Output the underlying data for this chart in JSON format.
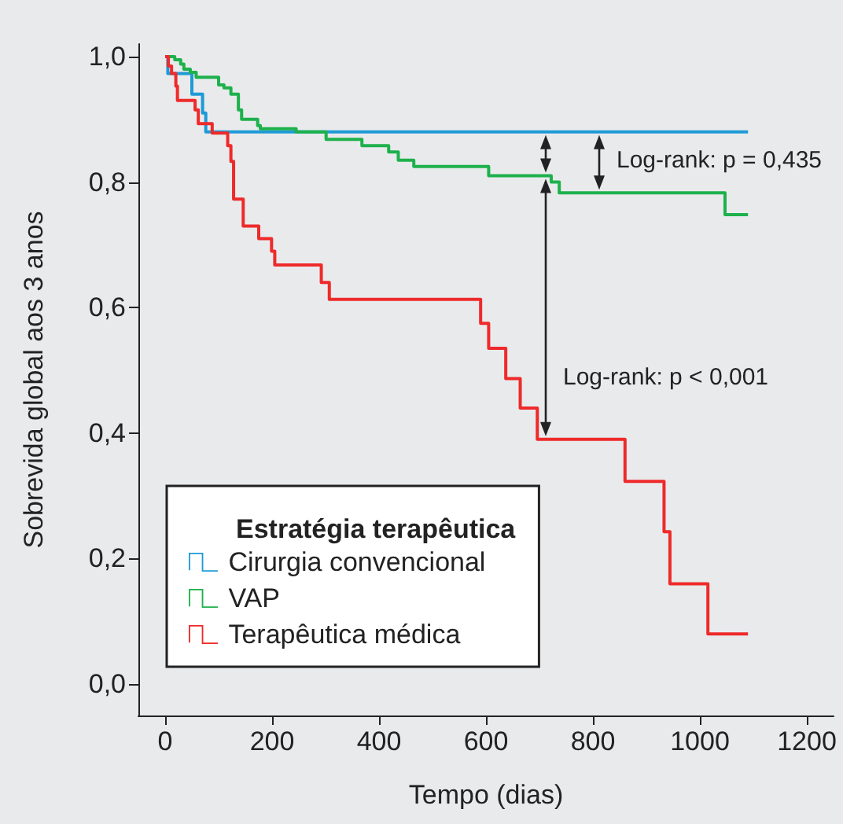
{
  "chart_data": {
    "type": "step",
    "xlabel": "Tempo (dias)",
    "ylabel": "Sobrevida global aos 3 anos",
    "legend_title": "Estratégia terapêutica",
    "legend": "bottom left",
    "grid": false,
    "marker": "none",
    "xlim": [
      -50,
      1250
    ],
    "xticks": [
      0,
      200,
      400,
      600,
      800,
      1000,
      1200
    ],
    "ylim": [
      -0.05,
      1.02
    ],
    "yticks": [
      {
        "value": 0,
        "label": "0,0"
      },
      {
        "value": 0.2,
        "label": "0,2"
      },
      {
        "value": 0.4,
        "label": "0,4"
      },
      {
        "value": 0.6,
        "label": "0,6"
      },
      {
        "value": 0.8,
        "label": "0,8"
      },
      {
        "value": 1,
        "label": "1,0"
      }
    ],
    "series": [
      {
        "name": "Cirurgia convencional",
        "color": "#1e9ad6",
        "x": [
          0,
          5,
          50,
          70,
          76,
          1090
        ],
        "values": [
          1,
          0.973,
          0.94,
          0.91,
          0.88,
          0.88
        ]
      },
      {
        "name": "VAP",
        "color": "#1db14b",
        "x": [
          0,
          18,
          29,
          35,
          47,
          58,
          100,
          110,
          123,
          137,
          143,
          173,
          178,
          245,
          301,
          368,
          418,
          436,
          465,
          605,
          722,
          737,
          1047,
          1090
        ],
        "values": [
          1,
          0.995,
          0.988,
          0.98,
          0.975,
          0.967,
          0.955,
          0.95,
          0.94,
          0.915,
          0.9,
          0.89,
          0.885,
          0.88,
          0.868,
          0.858,
          0.848,
          0.835,
          0.825,
          0.81,
          0.8,
          0.783,
          0.748,
          0.748
        ]
      },
      {
        "name": "Terapêutica médica",
        "color": "#ee2a2a",
        "x": [
          0,
          6,
          12,
          20,
          23,
          56,
          62,
          88,
          117,
          123,
          128,
          146,
          175,
          199,
          205,
          292,
          307,
          590,
          605,
          637,
          664,
          696,
          860,
          933,
          944,
          1015,
          1090
        ],
        "values": [
          1,
          0.985,
          0.973,
          0.953,
          0.93,
          0.915,
          0.893,
          0.878,
          0.858,
          0.833,
          0.773,
          0.73,
          0.71,
          0.69,
          0.668,
          0.64,
          0.613,
          0.575,
          0.535,
          0.487,
          0.44,
          0.39,
          0.323,
          0.243,
          0.16,
          0.08,
          0.08
        ]
      }
    ],
    "annotations": [
      "Log-rank: p = 0,435",
      "Log-rank: p < 0,001"
    ]
  }
}
